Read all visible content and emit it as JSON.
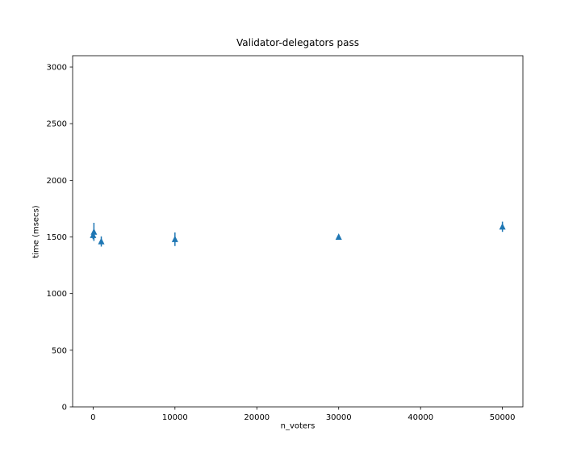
{
  "figure": {
    "background_color": "#ffffff",
    "text_color": "#000000"
  },
  "chart_data": {
    "type": "scatter",
    "title": "Validator-delegators pass",
    "xlabel": "n_voters",
    "ylabel": "time (msecs)",
    "marker": "triangle-up",
    "marker_color": "#1f77b4",
    "error_bars": true,
    "grid": false,
    "legend": null,
    "xlim": [
      -2500,
      52500
    ],
    "ylim": [
      0,
      3100
    ],
    "xticks": [
      0,
      10000,
      20000,
      30000,
      40000,
      50000
    ],
    "yticks": [
      0,
      500,
      1000,
      1500,
      2000,
      2500,
      3000
    ],
    "points": [
      {
        "x": 1,
        "y": 1515,
        "yerr": 35
      },
      {
        "x": 100,
        "y": 1545,
        "yerr": 80
      },
      {
        "x": 1000,
        "y": 1460,
        "yerr": 45
      },
      {
        "x": 10000,
        "y": 1480,
        "yerr": 60
      },
      {
        "x": 30000,
        "y": 1500,
        "yerr": 20
      },
      {
        "x": 50000,
        "y": 1590,
        "yerr": 45
      }
    ]
  }
}
